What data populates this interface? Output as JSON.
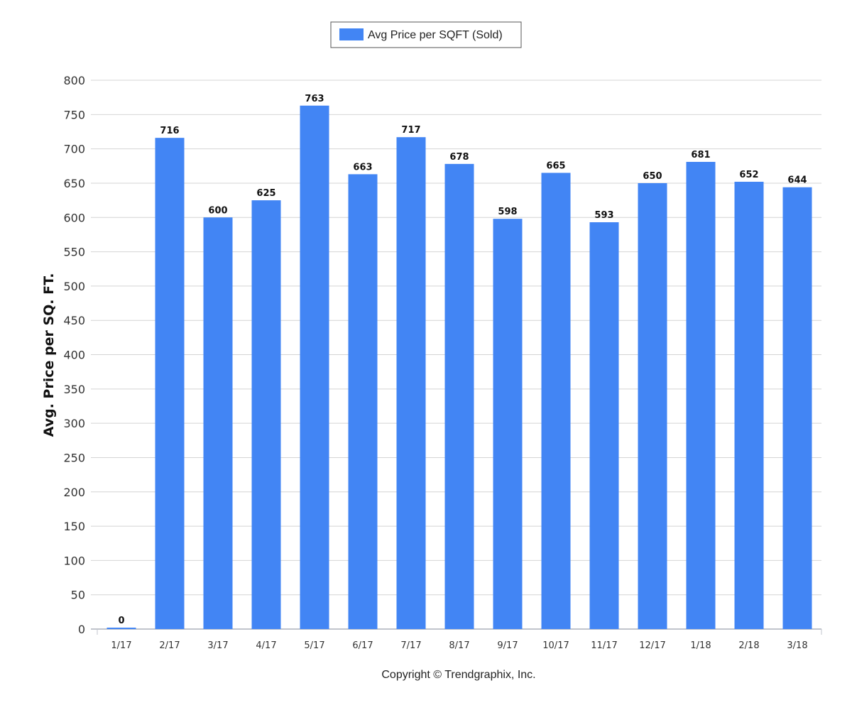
{
  "chart_data": {
    "type": "bar",
    "categories": [
      "1/17",
      "2/17",
      "3/17",
      "4/17",
      "5/17",
      "6/17",
      "7/17",
      "8/17",
      "9/17",
      "10/17",
      "11/17",
      "12/17",
      "1/18",
      "2/18",
      "3/18"
    ],
    "series": [
      {
        "name": "Avg Price per SQFT (Sold)",
        "values": [
          0,
          716,
          600,
          625,
          763,
          663,
          717,
          678,
          598,
          665,
          593,
          650,
          681,
          652,
          644
        ],
        "color": "#4285f4"
      }
    ],
    "title": "",
    "xlabel": "",
    "ylabel": "Avg. Price per SQ. FT.",
    "ylim": [
      0,
      800
    ],
    "ytick_step": 50,
    "grid": true,
    "legend_position": "top-center",
    "show_data_labels": true
  },
  "footer": {
    "copyright": "Copyright © Trendgraphix, Inc."
  }
}
